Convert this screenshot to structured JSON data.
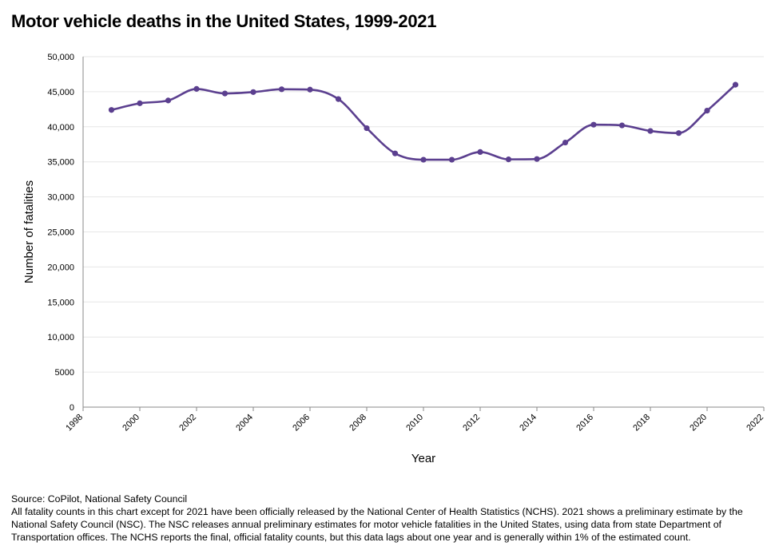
{
  "title": "Motor vehicle deaths in the United States, 1999-2021",
  "source": "Source: CoPilot, National Safety Council",
  "note": "All fatality counts in this chart except for 2021 have been officially released by the National Center of Health Statistics (NCHS). 2021 shows a preliminary estimate by the National Safety Council (NSC). The NSC releases annual preliminary estimates for motor vehicle fatalities in the United States, using data from state Department of Transportation offices. The NCHS reports the final, official fatality counts, but this data lags about one year and is generally within 1% of the estimated count.",
  "colors": {
    "line": "#5b3f8f",
    "grid": "#e6e6e6",
    "axis": "#888888"
  },
  "chart_data": {
    "type": "line",
    "title": "Motor vehicle deaths in the United States, 1999-2021",
    "xlabel": "Year",
    "ylabel": "Number of fatalities",
    "xlim": [
      1998,
      2022
    ],
    "ylim": [
      0,
      50000
    ],
    "x_ticks": [
      "1998",
      "2000",
      "2002",
      "2004",
      "2006",
      "2008",
      "2010",
      "2012",
      "2014",
      "2016",
      "2018",
      "2020",
      "2022"
    ],
    "y_ticks": [
      "0",
      "5000",
      "10,000",
      "15,000",
      "20,000",
      "25,000",
      "30,000",
      "35,000",
      "40,000",
      "45,000",
      "50,000"
    ],
    "grid": true,
    "series": [
      {
        "x": [
          1999,
          2000,
          2001,
          2002,
          2003,
          2004,
          2005,
          2006,
          2007,
          2008,
          2009,
          2010,
          2011,
          2012,
          2013,
          2014,
          2015,
          2016,
          2017,
          2018,
          2019,
          2020,
          2021
        ],
        "y": [
          42400,
          43350,
          43750,
          45400,
          44750,
          44950,
          45350,
          45300,
          43950,
          39800,
          36200,
          35300,
          35300,
          36400,
          35350,
          35400,
          37750,
          40300,
          40200,
          39400,
          39100,
          42300,
          46000
        ]
      }
    ]
  }
}
